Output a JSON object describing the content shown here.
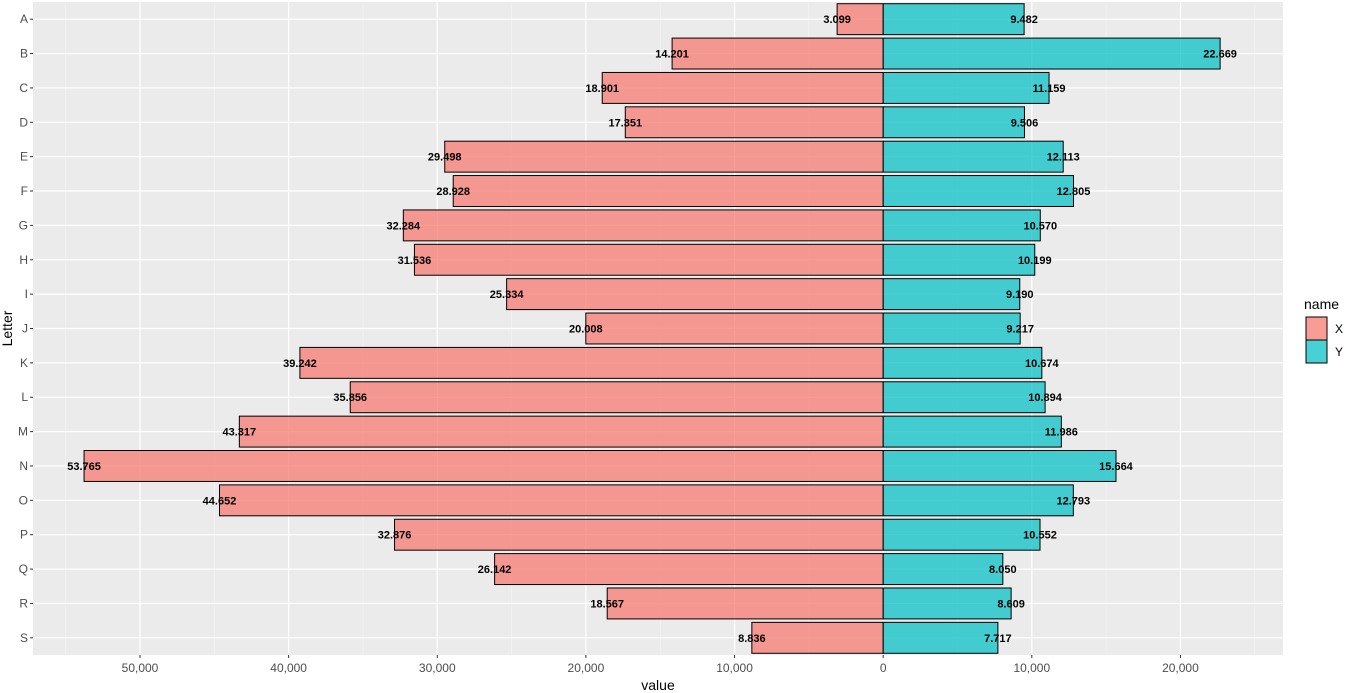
{
  "chart_data": {
    "type": "bar",
    "orientation": "horizontal-diverging",
    "title": "",
    "xlabel": "value",
    "ylabel": "Letter",
    "categories": [
      "A",
      "B",
      "C",
      "D",
      "E",
      "F",
      "G",
      "H",
      "I",
      "J",
      "K",
      "L",
      "M",
      "N",
      "O",
      "P",
      "Q",
      "R",
      "S"
    ],
    "series": [
      {
        "name": "X",
        "color": "#F8766D",
        "direction": "negative",
        "values": [
          3099,
          14201,
          18901,
          17351,
          29498,
          28928,
          32284,
          31536,
          25334,
          20008,
          39242,
          35856,
          43317,
          53765,
          44652,
          32876,
          26142,
          18567,
          8836
        ],
        "labels": [
          "3.099",
          "14.201",
          "18.901",
          "17.351",
          "29.498",
          "28.928",
          "32.284",
          "31.536",
          "25.334",
          "20.008",
          "39.242",
          "35.856",
          "43.317",
          "53.765",
          "44.652",
          "32.876",
          "26.142",
          "18.567",
          "8.836"
        ]
      },
      {
        "name": "Y",
        "color": "#00BFC4",
        "direction": "positive",
        "values": [
          9482,
          22669,
          11159,
          9506,
          12113,
          12805,
          10570,
          10199,
          9190,
          9217,
          10674,
          10894,
          11986,
          15664,
          12793,
          10552,
          8050,
          8609,
          7717
        ],
        "labels": [
          "9.482",
          "22.669",
          "11.159",
          "9.506",
          "12.113",
          "12.805",
          "10.570",
          "10.199",
          "9.190",
          "9.217",
          "10.674",
          "10.894",
          "11.986",
          "15.664",
          "12.793",
          "10.552",
          "8.050",
          "8.609",
          "7.717"
        ]
      }
    ],
    "xlim": [
      -57200,
      26900
    ],
    "x_ticks": [
      {
        "value": -50000,
        "label": "50,000"
      },
      {
        "value": -40000,
        "label": "40,000"
      },
      {
        "value": -30000,
        "label": "30,000"
      },
      {
        "value": -20000,
        "label": "20,000"
      },
      {
        "value": -10000,
        "label": "10,000"
      },
      {
        "value": 0,
        "label": "0"
      },
      {
        "value": 10000,
        "label": "10,000"
      },
      {
        "value": 20000,
        "label": "20,000"
      }
    ],
    "grid": true,
    "legend": {
      "title": "name",
      "placement": "right",
      "entries": [
        {
          "label": "X",
          "color": "#F8766D"
        },
        {
          "label": "Y",
          "color": "#00BFC4"
        }
      ]
    }
  }
}
